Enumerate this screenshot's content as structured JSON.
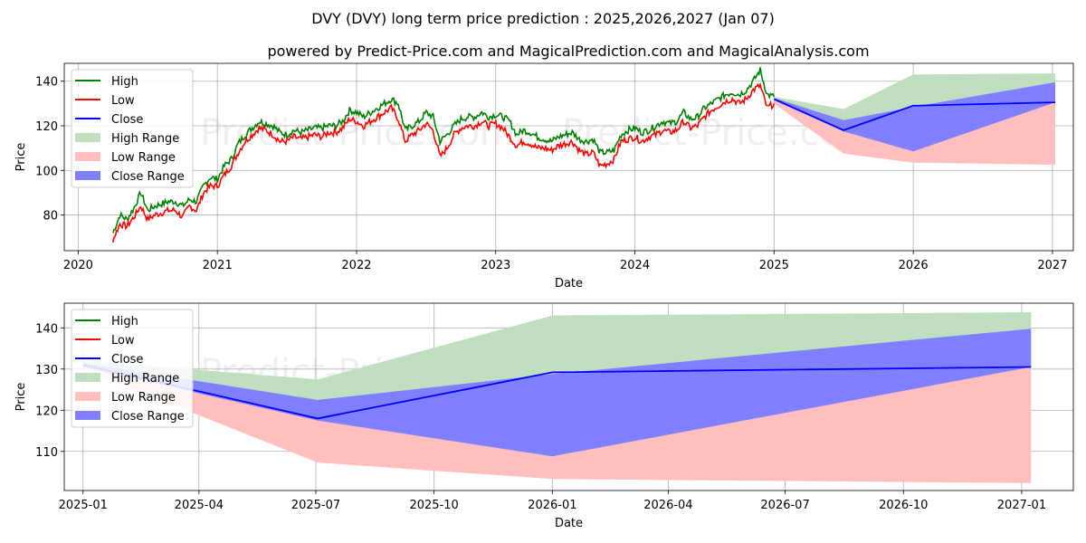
{
  "title": "DVY (DVY) long term price prediction : 2025,2026,2027 (Jan 07)",
  "subtitle": "powered by Predict-Price.com and MagicalPrediction.com and MagicalAnalysis.com",
  "watermark": "Predict-Price.com",
  "colors": {
    "high": "#008000",
    "low": "#ff0000",
    "close": "#0000ff",
    "high_range": "#c0dfc0",
    "low_range": "#ffbfbf",
    "close_range": "#8080ff",
    "grid": "#b0b0b0"
  },
  "legend": [
    {
      "label": "High",
      "kind": "line",
      "color_key": "high"
    },
    {
      "label": "Low",
      "kind": "line",
      "color_key": "low"
    },
    {
      "label": "Close",
      "kind": "line",
      "color_key": "close"
    },
    {
      "label": "High Range",
      "kind": "patch",
      "color_key": "high_range"
    },
    {
      "label": "Low Range",
      "kind": "patch",
      "color_key": "low_range"
    },
    {
      "label": "Close Range",
      "kind": "patch",
      "color_key": "close_range"
    }
  ],
  "chart_data": [
    {
      "type": "line",
      "xlabel": "Date",
      "ylabel": "Price",
      "xlim": [
        2019.9,
        2027.15
      ],
      "ylim": [
        64,
        148
      ],
      "x_ticks": [
        2020,
        2021,
        2022,
        2023,
        2024,
        2025,
        2026,
        2027
      ],
      "x_tick_labels": [
        "2020",
        "2021",
        "2022",
        "2023",
        "2024",
        "2025",
        "2026",
        "2027"
      ],
      "y_ticks": [
        80,
        100,
        120,
        140
      ],
      "grid": true,
      "legend_position": "upper-left",
      "history": {
        "x": [
          2020.25,
          2020.3,
          2020.35,
          2020.4,
          2020.45,
          2020.5,
          2020.55,
          2020.6,
          2020.65,
          2020.7,
          2020.75,
          2020.8,
          2020.85,
          2020.9,
          2020.95,
          2021.0,
          2021.05,
          2021.1,
          2021.15,
          2021.2,
          2021.25,
          2021.3,
          2021.35,
          2021.4,
          2021.45,
          2021.5,
          2021.55,
          2021.6,
          2021.65,
          2021.7,
          2021.75,
          2021.8,
          2021.85,
          2021.9,
          2021.95,
          2022.0,
          2022.05,
          2022.1,
          2022.15,
          2022.2,
          2022.25,
          2022.3,
          2022.35,
          2022.4,
          2022.45,
          2022.5,
          2022.55,
          2022.6,
          2022.65,
          2022.7,
          2022.75,
          2022.8,
          2022.85,
          2022.9,
          2022.95,
          2023.0,
          2023.05,
          2023.1,
          2023.15,
          2023.2,
          2023.25,
          2023.3,
          2023.35,
          2023.4,
          2023.45,
          2023.5,
          2023.55,
          2023.6,
          2023.65,
          2023.7,
          2023.75,
          2023.8,
          2023.85,
          2023.9,
          2023.95,
          2024.0,
          2024.05,
          2024.1,
          2024.15,
          2024.2,
          2024.25,
          2024.3,
          2024.35,
          2024.4,
          2024.45,
          2024.5,
          2024.55,
          2024.6,
          2024.65,
          2024.7,
          2024.75,
          2024.8,
          2024.85,
          2024.9,
          2024.95,
          2025.0
        ],
        "high": [
          72,
          80,
          78,
          83,
          90,
          82,
          84,
          85,
          86,
          86,
          84,
          87,
          86,
          93,
          97,
          96,
          102,
          105,
          112,
          116,
          119,
          122,
          121,
          120,
          117,
          116,
          118,
          117,
          118,
          119,
          119,
          120,
          120,
          122,
          127,
          126,
          124,
          126,
          128,
          130,
          132,
          130,
          118,
          120,
          122,
          126,
          124,
          113,
          116,
          120,
          123,
          124,
          124,
          126,
          124,
          125,
          124,
          122,
          116,
          118,
          117,
          115,
          114,
          113,
          115,
          116,
          117,
          114,
          113,
          114,
          108,
          108,
          109,
          116,
          118,
          119,
          117,
          118,
          120,
          122,
          121,
          122,
          126,
          123,
          124,
          128,
          130,
          132,
          134,
          135,
          134,
          136,
          140,
          145,
          134,
          133
        ],
        "low": [
          69,
          76,
          75,
          79,
          84,
          78,
          80,
          81,
          82,
          82,
          79,
          84,
          82,
          90,
          93,
          93,
          98,
          102,
          108,
          113,
          116,
          119,
          118,
          116,
          113,
          113,
          115,
          114,
          115,
          116,
          115,
          117,
          117,
          119,
          123,
          122,
          120,
          122,
          124,
          126,
          128,
          123,
          113,
          116,
          118,
          121,
          118,
          106,
          110,
          116,
          119,
          120,
          120,
          122,
          120,
          121,
          119,
          115,
          111,
          113,
          112,
          110,
          110,
          109,
          111,
          112,
          113,
          109,
          107,
          108,
          102,
          103,
          105,
          113,
          114,
          115,
          113,
          115,
          116,
          118,
          117,
          118,
          122,
          119,
          120,
          124,
          127,
          129,
          131,
          132,
          130,
          132,
          136,
          138,
          128,
          130
        ]
      },
      "forecast": {
        "x": [
          2025.0,
          2025.5,
          2026.0,
          2027.02
        ],
        "close": [
          132,
          118,
          129,
          130.5
        ],
        "high_range_top": [
          133,
          127.5,
          143,
          143.5
        ],
        "low_range_bottom": [
          130,
          107.5,
          103.5,
          102.5
        ],
        "close_range_top": [
          132.5,
          122.5,
          128.5,
          139.5
        ],
        "close_range_bottom": [
          131.5,
          117.5,
          108.5,
          130.5
        ]
      }
    },
    {
      "type": "area",
      "xlabel": "Date",
      "ylabel": "Price",
      "xlim": [
        2024.96,
        2027.11
      ],
      "ylim": [
        100.5,
        146
      ],
      "x_ticks": [
        2025.0,
        2025.247,
        2025.496,
        2025.748,
        2026.0,
        2026.247,
        2026.496,
        2026.748,
        2027.0
      ],
      "x_tick_labels": [
        "2025-01",
        "2025-04",
        "2025-07",
        "2025-10",
        "2026-01",
        "2026-04",
        "2026-07",
        "2026-10",
        "2027-01"
      ],
      "y_ticks": [
        110,
        120,
        130,
        140
      ],
      "grid": true,
      "legend_position": "upper-left",
      "forecast": {
        "x": [
          2025.0,
          2025.5,
          2026.0,
          2027.02
        ],
        "close": [
          131,
          118,
          129.2,
          130.5
        ],
        "high_range_top": [
          132,
          127.5,
          143,
          143.8
        ],
        "low_range_bottom": [
          130,
          107.3,
          103.3,
          102.3
        ],
        "close_range_top": [
          131.5,
          122.5,
          128.8,
          139.8
        ],
        "close_range_bottom": [
          130.5,
          117.5,
          108.8,
          130.5
        ]
      }
    }
  ]
}
